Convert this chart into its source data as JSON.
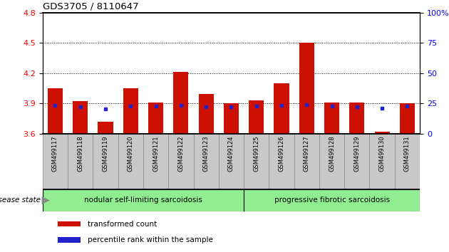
{
  "title": "GDS3705 / 8110647",
  "samples": [
    "GSM499117",
    "GSM499118",
    "GSM499119",
    "GSM499120",
    "GSM499121",
    "GSM499122",
    "GSM499123",
    "GSM499124",
    "GSM499125",
    "GSM499126",
    "GSM499127",
    "GSM499128",
    "GSM499129",
    "GSM499130",
    "GSM499131"
  ],
  "transformed_counts": [
    4.05,
    3.92,
    3.72,
    4.05,
    3.91,
    4.21,
    3.99,
    3.9,
    3.93,
    4.1,
    4.5,
    3.91,
    3.91,
    3.62,
    3.9
  ],
  "percentile_values": [
    3.88,
    3.865,
    3.845,
    3.875,
    3.875,
    3.88,
    3.865,
    3.865,
    3.875,
    3.88,
    3.89,
    3.875,
    3.865,
    3.855,
    3.875
  ],
  "ylim_left": [
    3.6,
    4.8
  ],
  "ylim_right": [
    0,
    100
  ],
  "yticks_left": [
    3.6,
    3.9,
    4.2,
    4.5,
    4.8
  ],
  "yticks_right": [
    0,
    25,
    50,
    75,
    100
  ],
  "ytick_labels_right": [
    "0",
    "25",
    "50",
    "75",
    "100%"
  ],
  "bar_color": "#cc1100",
  "percentile_color": "#2222cc",
  "bar_width": 0.6,
  "baseline": 3.6,
  "legend_items": [
    "transformed count",
    "percentile rank within the sample"
  ],
  "disease_state_label": "disease state",
  "group1_label": "nodular self-limiting sarcoidosis",
  "group2_label": "progressive fibrotic sarcoidosis",
  "group1_count": 8,
  "group2_count": 7,
  "dotted_lines": [
    3.9,
    4.2,
    4.5
  ],
  "tick_bg_color": "#c8c8c8",
  "group_bg_color": "#90ee90"
}
